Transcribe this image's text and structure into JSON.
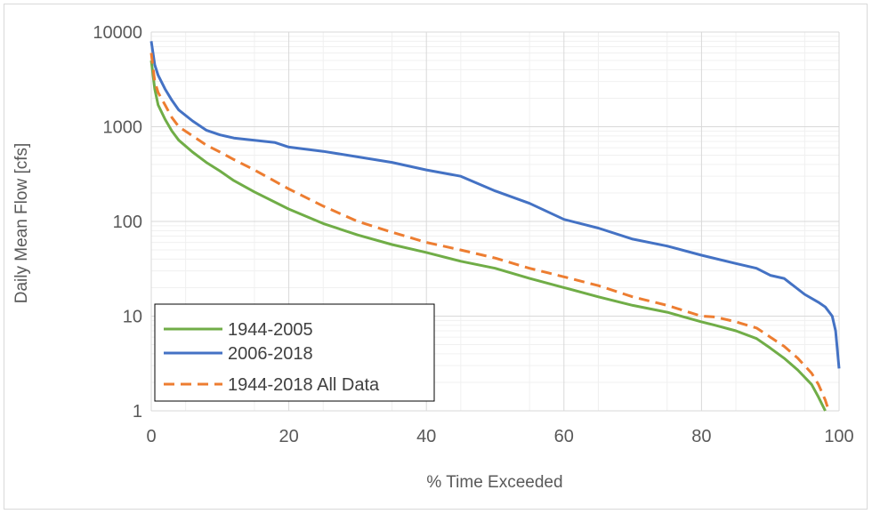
{
  "chart_data": {
    "type": "line",
    "title": "",
    "xlabel": "% Time Exceeded",
    "ylabel": "Daily Mean Flow [cfs]",
    "xlim": [
      0,
      100
    ],
    "ylim": [
      1,
      10000
    ],
    "yscale": "log",
    "grid": true,
    "legend_position": "bottom-left",
    "x_ticks": [
      "0",
      "20",
      "40",
      "60",
      "80",
      "100"
    ],
    "y_ticks": [
      "1",
      "10",
      "100",
      "1000",
      "10000"
    ],
    "series": [
      {
        "name": "1944-2005",
        "color": "#70ad47",
        "dash": "solid",
        "points": [
          [
            0,
            5000
          ],
          [
            0.5,
            2500
          ],
          [
            1,
            1700
          ],
          [
            2,
            1200
          ],
          [
            3,
            900
          ],
          [
            4,
            720
          ],
          [
            6,
            540
          ],
          [
            8,
            420
          ],
          [
            10,
            340
          ],
          [
            12,
            270
          ],
          [
            15,
            205
          ],
          [
            20,
            135
          ],
          [
            25,
            95
          ],
          [
            30,
            72
          ],
          [
            35,
            57
          ],
          [
            40,
            47
          ],
          [
            45,
            38
          ],
          [
            50,
            32
          ],
          [
            55,
            25
          ],
          [
            60,
            20
          ],
          [
            65,
            16
          ],
          [
            70,
            13
          ],
          [
            75,
            11
          ],
          [
            80,
            8.7
          ],
          [
            82,
            8
          ],
          [
            85,
            7
          ],
          [
            88,
            5.8
          ],
          [
            90,
            4.6
          ],
          [
            92,
            3.6
          ],
          [
            94,
            2.7
          ],
          [
            96,
            1.9
          ],
          [
            97,
            1.4
          ],
          [
            98,
            1.0
          ]
        ]
      },
      {
        "name": "2006-2018",
        "color": "#4472c4",
        "dash": "solid",
        "points": [
          [
            0,
            8000
          ],
          [
            0.5,
            4500
          ],
          [
            1,
            3500
          ],
          [
            2,
            2500
          ],
          [
            3,
            1900
          ],
          [
            4,
            1500
          ],
          [
            6,
            1150
          ],
          [
            8,
            920
          ],
          [
            10,
            820
          ],
          [
            12,
            760
          ],
          [
            15,
            720
          ],
          [
            18,
            680
          ],
          [
            20,
            610
          ],
          [
            25,
            550
          ],
          [
            30,
            480
          ],
          [
            35,
            420
          ],
          [
            40,
            350
          ],
          [
            45,
            300
          ],
          [
            50,
            210
          ],
          [
            55,
            155
          ],
          [
            60,
            105
          ],
          [
            65,
            85
          ],
          [
            70,
            65
          ],
          [
            75,
            55
          ],
          [
            80,
            44
          ],
          [
            85,
            36
          ],
          [
            88,
            32
          ],
          [
            90,
            27
          ],
          [
            92,
            25
          ],
          [
            95,
            17
          ],
          [
            97,
            14
          ],
          [
            98,
            12.5
          ],
          [
            99,
            10
          ],
          [
            99.5,
            7
          ],
          [
            100,
            2.8
          ]
        ]
      },
      {
        "name": "1944-2018 All Data",
        "color": "#ed7d31",
        "dash": "dashed",
        "points": [
          [
            0,
            6000
          ],
          [
            0.5,
            3000
          ],
          [
            1,
            2300
          ],
          [
            2,
            1700
          ],
          [
            3,
            1250
          ],
          [
            4,
            1000
          ],
          [
            6,
            800
          ],
          [
            8,
            640
          ],
          [
            10,
            540
          ],
          [
            12,
            450
          ],
          [
            15,
            350
          ],
          [
            20,
            220
          ],
          [
            25,
            145
          ],
          [
            30,
            100
          ],
          [
            35,
            77
          ],
          [
            40,
            60
          ],
          [
            45,
            50
          ],
          [
            50,
            41
          ],
          [
            55,
            32
          ],
          [
            60,
            26
          ],
          [
            65,
            21
          ],
          [
            70,
            16
          ],
          [
            75,
            13
          ],
          [
            80,
            10
          ],
          [
            82,
            9.8
          ],
          [
            85,
            8.7
          ],
          [
            88,
            7.5
          ],
          [
            90,
            6
          ],
          [
            92,
            4.8
          ],
          [
            94,
            3.6
          ],
          [
            96,
            2.5
          ],
          [
            97,
            1.9
          ],
          [
            98,
            1.3
          ],
          [
            98.5,
            1.0
          ]
        ]
      }
    ]
  }
}
